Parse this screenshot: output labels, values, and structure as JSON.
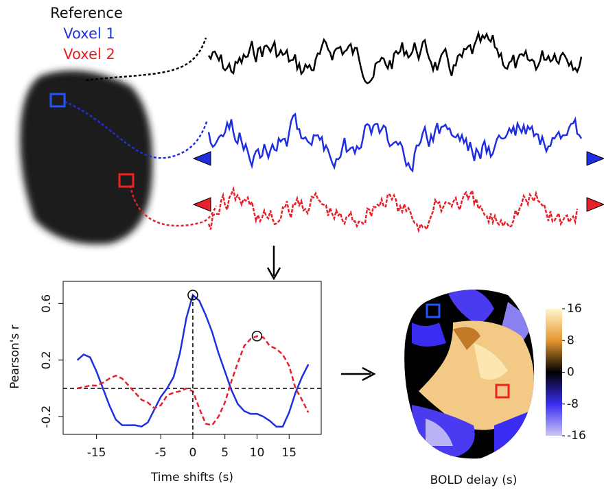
{
  "legend": {
    "reference": "Reference",
    "voxel1": "Voxel 1",
    "voxel2": "Voxel 2"
  },
  "chart_data": [
    {
      "type": "line",
      "xlabel": "Time shifts (s)",
      "ylabel": "Pearson's r",
      "x": [
        -18,
        -17,
        -16,
        -15,
        -14,
        -13,
        -12,
        -11,
        -10,
        -9,
        -8,
        -7,
        -6,
        -5,
        -4,
        -3,
        -2,
        -1,
        0,
        1,
        2,
        3,
        4,
        5,
        6,
        7,
        8,
        9,
        10,
        11,
        12,
        13,
        14,
        15,
        16,
        17,
        18
      ],
      "series": [
        {
          "name": "Voxel 1",
          "color": "#1f2fe0",
          "dash": false,
          "values": [
            0.2,
            0.24,
            0.22,
            0.12,
            0.0,
            -0.12,
            -0.22,
            -0.26,
            -0.26,
            -0.26,
            -0.27,
            -0.24,
            -0.15,
            -0.06,
            0.0,
            0.08,
            0.25,
            0.5,
            0.66,
            0.62,
            0.52,
            0.4,
            0.25,
            0.12,
            -0.01,
            -0.11,
            -0.16,
            -0.18,
            -0.18,
            -0.2,
            -0.23,
            -0.27,
            -0.27,
            -0.17,
            -0.03,
            0.08,
            0.17
          ]
        },
        {
          "name": "Voxel 2",
          "color": "#e8202a",
          "dash": true,
          "values": [
            0.0,
            0.01,
            0.02,
            0.02,
            0.04,
            0.07,
            0.09,
            0.07,
            0.02,
            -0.03,
            -0.08,
            -0.1,
            -0.14,
            -0.12,
            -0.05,
            -0.03,
            -0.02,
            0.0,
            -0.02,
            -0.14,
            -0.25,
            -0.26,
            -0.2,
            -0.1,
            0.05,
            0.18,
            0.3,
            0.35,
            0.37,
            0.36,
            0.3,
            0.28,
            0.24,
            0.16,
            0.0,
            -0.08,
            -0.17
          ]
        }
      ],
      "xlim": [
        -20.2,
        20
      ],
      "ylim": [
        -0.325,
        0.757
      ],
      "xticks": [
        -15,
        -5,
        0,
        5,
        10,
        15
      ],
      "yticks": [
        -0.2,
        0.2,
        0.6
      ],
      "hline": 0,
      "vline": 0
    },
    {
      "type": "colorbar",
      "label": "BOLD delay (s)",
      "lim": [
        -16,
        16
      ],
      "ticks": [
        16,
        8,
        0,
        -8,
        -16
      ],
      "colormap": [
        "#cbc6f5",
        "#3a2cf0",
        "#000000",
        "#e4972f",
        "#fff6cc"
      ]
    }
  ]
}
